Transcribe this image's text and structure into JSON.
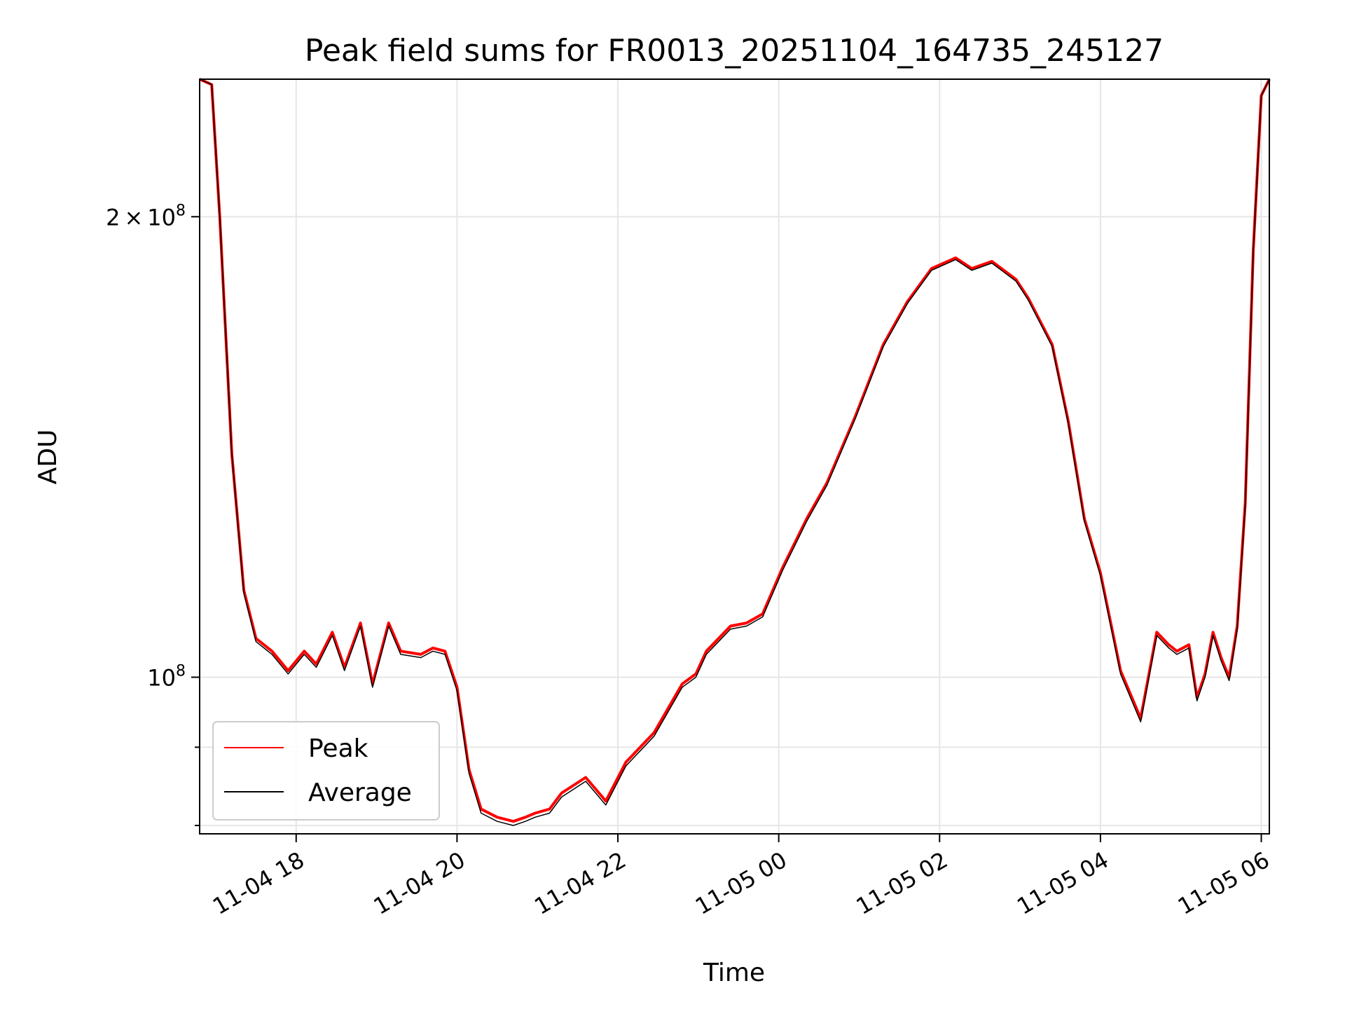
{
  "chart_data": {
    "type": "line",
    "title": "Peak field sums for FR0013_20251104_164735_245127",
    "xlabel": "Time",
    "ylabel": "ADU",
    "x_unit": "hours since 11-04 00:00",
    "xlim": [
      16.8,
      30.1
    ],
    "ylim": [
      79000000,
      246000000
    ],
    "yscale": "log",
    "grid": true,
    "x_ticks": [
      {
        "value": 18,
        "label": "11-04 18"
      },
      {
        "value": 20,
        "label": "11-04 20"
      },
      {
        "value": 22,
        "label": "11-04 22"
      },
      {
        "value": 24,
        "label": "11-05 00"
      },
      {
        "value": 26,
        "label": "11-05 02"
      },
      {
        "value": 28,
        "label": "11-05 04"
      },
      {
        "value": 30,
        "label": "11-05 06"
      }
    ],
    "y_ticks_major": [
      {
        "value": 200000000,
        "mantissa": "2",
        "times": "×",
        "base": "10",
        "exp": "8"
      },
      {
        "value": 100000000,
        "mantissa": "",
        "times": "",
        "base": "10",
        "exp": "8"
      }
    ],
    "y_ticks_minor": [
      80000000,
      90000000
    ],
    "legend": {
      "position": "lower-left",
      "entries": [
        {
          "name": "Peak",
          "color": "#ff0000"
        },
        {
          "name": "Average",
          "color": "#000000"
        }
      ]
    },
    "series": [
      {
        "name": "Peak",
        "color": "#ff0000",
        "x": [
          16.8,
          16.95,
          17.05,
          17.2,
          17.35,
          17.5,
          17.7,
          17.9,
          18.1,
          18.25,
          18.45,
          18.6,
          18.8,
          18.95,
          19.15,
          19.3,
          19.55,
          19.7,
          19.85,
          20.0,
          20.15,
          20.3,
          20.5,
          20.7,
          20.85,
          20.97,
          21.15,
          21.3,
          21.6,
          21.85,
          22.1,
          22.45,
          22.8,
          22.97,
          23.1,
          23.4,
          23.6,
          23.8,
          24.05,
          24.35,
          24.6,
          24.95,
          25.3,
          25.6,
          25.9,
          26.2,
          26.4,
          26.65,
          26.95,
          27.1,
          27.4,
          27.6,
          27.8,
          28.0,
          28.25,
          28.5,
          28.7,
          28.85,
          28.95,
          29.1,
          29.2,
          29.3,
          29.4,
          29.5,
          29.6,
          29.7,
          29.8,
          29.9,
          30.0,
          30.1
        ],
        "y": [
          246000000,
          244000000,
          200000000,
          140000000,
          114000000,
          106000000,
          104000000,
          101000000,
          104000000,
          102000000,
          107000000,
          101500000,
          108500000,
          99000000,
          108500000,
          104000000,
          103500000,
          104500000,
          104000000,
          98500000,
          87000000,
          82000000,
          81000000,
          80500000,
          81000000,
          81500000,
          82000000,
          84000000,
          86000000,
          83000000,
          88000000,
          92000000,
          99000000,
          100500000,
          104000000,
          108000000,
          108500000,
          110000000,
          118000000,
          127000000,
          134000000,
          148000000,
          165000000,
          176000000,
          185000000,
          188000000,
          185000000,
          187000000,
          182000000,
          177000000,
          165000000,
          147000000,
          127000000,
          117000000,
          101000000,
          94000000,
          107000000,
          105000000,
          104000000,
          105000000,
          97000000,
          100500000,
          107000000,
          103000000,
          100000000,
          108000000,
          130000000,
          190000000,
          240000000,
          246000000
        ]
      },
      {
        "name": "Average",
        "color": "#000000",
        "x": [
          16.8,
          16.95,
          17.05,
          17.2,
          17.35,
          17.5,
          17.7,
          17.9,
          18.1,
          18.25,
          18.45,
          18.6,
          18.8,
          18.95,
          19.15,
          19.3,
          19.55,
          19.7,
          19.85,
          20.0,
          20.15,
          20.3,
          20.5,
          20.7,
          20.85,
          20.97,
          21.15,
          21.3,
          21.6,
          21.85,
          22.1,
          22.45,
          22.8,
          22.97,
          23.1,
          23.4,
          23.6,
          23.8,
          24.05,
          24.35,
          24.6,
          24.95,
          25.3,
          25.6,
          25.9,
          26.2,
          26.4,
          26.65,
          26.95,
          27.1,
          27.4,
          27.6,
          27.8,
          28.0,
          28.25,
          28.5,
          28.7,
          28.85,
          28.95,
          29.1,
          29.2,
          29.3,
          29.4,
          29.5,
          29.6,
          29.7,
          29.8,
          29.9,
          30.0,
          30.1
        ],
        "y": [
          246000000,
          244000000,
          200000000,
          140000000,
          113500000,
          105500000,
          103500000,
          100500000,
          103500000,
          101500000,
          106500000,
          101000000,
          108000000,
          98500000,
          108000000,
          103500000,
          103000000,
          104000000,
          103500000,
          98000000,
          86500000,
          81500000,
          80500000,
          80000000,
          80500000,
          81000000,
          81500000,
          83500000,
          85500000,
          82500000,
          87500000,
          91500000,
          98500000,
          100000000,
          103500000,
          107500000,
          108000000,
          109500000,
          117500000,
          126500000,
          133500000,
          147500000,
          164500000,
          175500000,
          184500000,
          187500000,
          184500000,
          186500000,
          181500000,
          176500000,
          164500000,
          146500000,
          126500000,
          116500000,
          100500000,
          93500000,
          106500000,
          104500000,
          103500000,
          104500000,
          96500000,
          100000000,
          106500000,
          102500000,
          99500000,
          107500000,
          129500000,
          189500000,
          240000000,
          246000000
        ]
      }
    ]
  }
}
